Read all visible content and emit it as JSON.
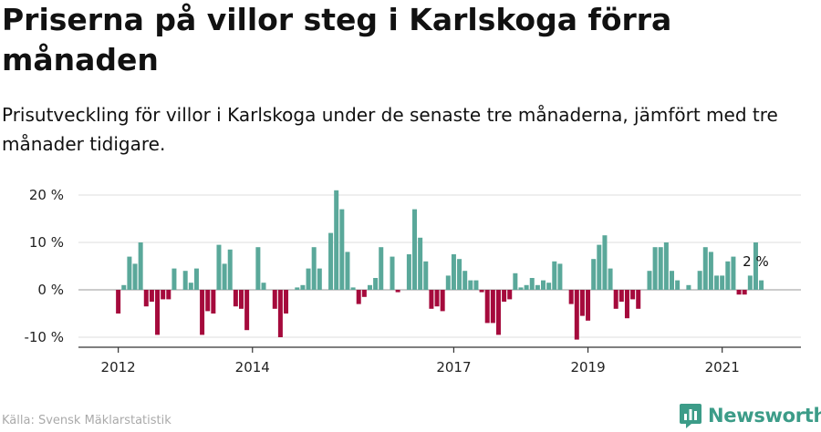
{
  "title": "Priserna på villor steg i Karlskoga förra månaden",
  "subtitle": "Prisutveckling för villor i Karlskoga under de senaste tre månaderna, jämfört med tre månader tidigare.",
  "source": "Källa: Svensk Mäklarstatistik",
  "brand": {
    "name": "Newsworthy",
    "icon": "newsworthy-logo-icon"
  },
  "colors": {
    "positive": "#5aa89a",
    "negative": "#a50a3c",
    "grid": "#dddddd",
    "axis": "#333333",
    "text": "#222222"
  },
  "chart_data": {
    "type": "bar",
    "x_start": "2011-12",
    "xlabel": "",
    "ylabel": "",
    "ylim": [
      -12,
      21
    ],
    "yticks": [
      -10,
      0,
      10,
      20
    ],
    "ytick_labels": [
      "-10 %",
      "0 %",
      "10 %",
      "20 %"
    ],
    "xticks": [
      {
        "index": 1,
        "label": "2012"
      },
      {
        "index": 25,
        "label": "2014"
      },
      {
        "index": 61,
        "label": "2017"
      },
      {
        "index": 85,
        "label": "2019"
      },
      {
        "index": 109,
        "label": "2021"
      }
    ],
    "annotation": {
      "index": 115,
      "label": "2 %"
    },
    "values": [
      0,
      -5,
      1,
      7,
      5.5,
      10,
      -3.5,
      -2.5,
      -9.5,
      -2,
      -2,
      4.5,
      0,
      4,
      1.5,
      4.5,
      -9.5,
      -4.5,
      -5,
      9.5,
      5.5,
      8.5,
      -3.5,
      -4,
      -8.5,
      0,
      9,
      1.5,
      0,
      -4,
      -10,
      -5,
      0,
      0.5,
      1,
      4.5,
      9,
      4.5,
      0,
      12,
      21,
      17,
      8,
      0.5,
      -3,
      -1.5,
      1,
      2.5,
      9,
      0,
      7,
      -0.5,
      0,
      7.5,
      17,
      11,
      6,
      -4,
      -3.5,
      -4.5,
      3,
      7.5,
      6.5,
      4,
      2,
      2,
      -0.5,
      -7,
      -7,
      -9.5,
      -2.5,
      -2,
      3.5,
      0.5,
      1,
      2.5,
      1,
      2,
      1.5,
      6,
      5.5,
      0,
      -3,
      -10.5,
      -5.5,
      -6.5,
      6.5,
      9.5,
      11.5,
      4.5,
      -4,
      -2.5,
      -6,
      -2,
      -4,
      0,
      4,
      9,
      9,
      10,
      4,
      2,
      0,
      1,
      0,
      4,
      9,
      8,
      3,
      3,
      6,
      7,
      -1,
      -1,
      3,
      10,
      2
    ]
  }
}
